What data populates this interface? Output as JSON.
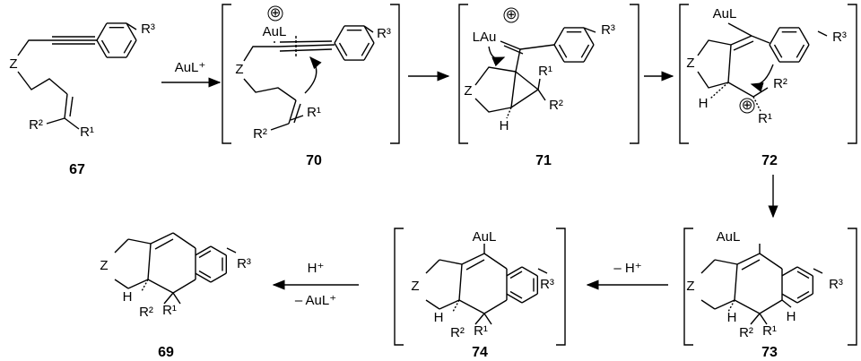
{
  "compound_labels": [
    "67",
    "70",
    "71",
    "72",
    "73",
    "74",
    "69"
  ],
  "reagents": [
    "AuL⁺",
    "H⁺",
    "– AuL⁺",
    "– H⁺"
  ],
  "structures": [
    {
      "atoms": [
        "Z",
        "R³",
        "R¹",
        "R²"
      ]
    },
    {
      "atoms": [
        "⊕",
        "AuL",
        "R³",
        "Z",
        "R¹",
        "R²"
      ]
    },
    {
      "atoms": [
        "⊕",
        "LAu",
        "R³",
        "R¹",
        "Z",
        "R²",
        "H"
      ]
    },
    {
      "atoms": [
        "AuL",
        "R³",
        "Z",
        "R²",
        "H",
        "⊕",
        "R¹"
      ]
    },
    {
      "atoms": [
        "AuL",
        "Z",
        "R³",
        "H",
        "H",
        "R²",
        "R¹"
      ]
    },
    {
      "atoms": [
        "AuL",
        "Z",
        "R³",
        "H",
        "R²",
        "R¹"
      ]
    },
    {
      "atoms": [
        "Z",
        "R³",
        "H",
        "R²",
        "R¹"
      ]
    }
  ]
}
